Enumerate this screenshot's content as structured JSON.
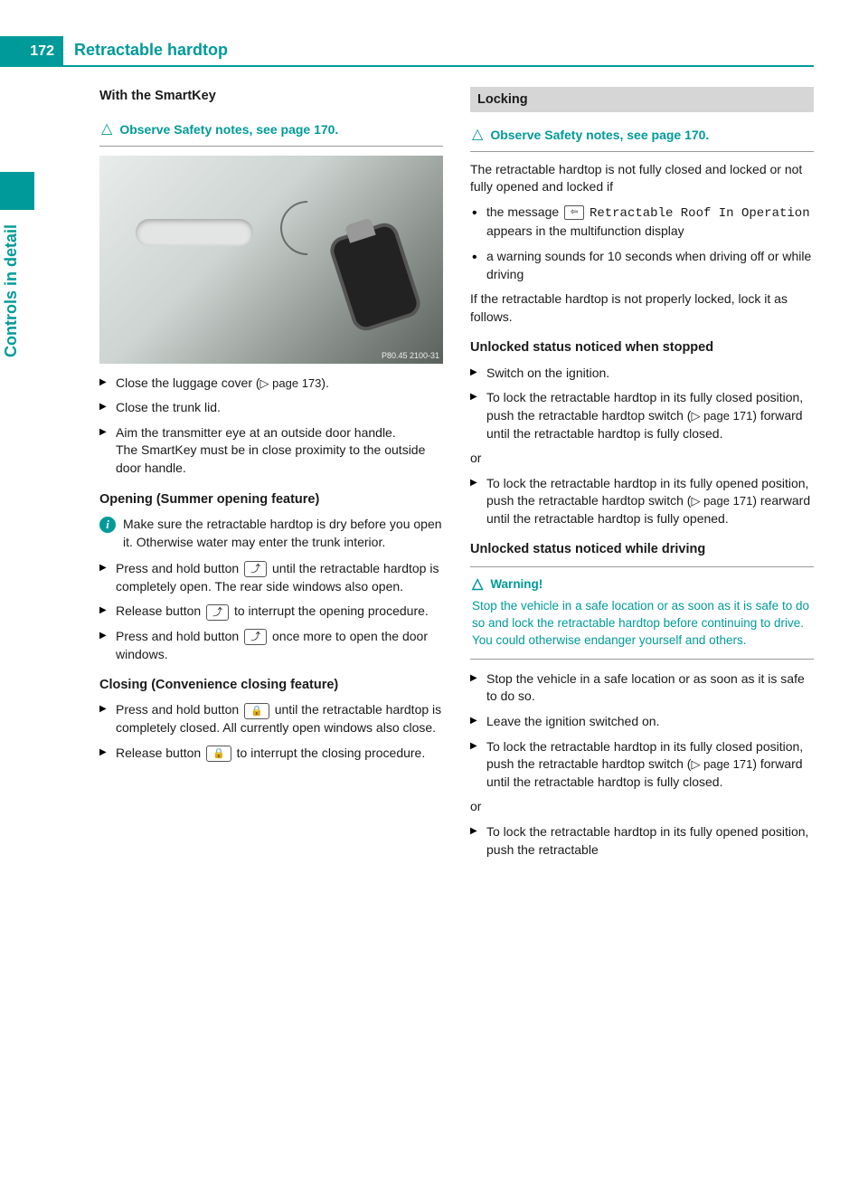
{
  "page": {
    "number": "172",
    "chapter_title": "Retractable hardtop",
    "side_tab": "Controls in detail"
  },
  "left": {
    "h_smartkey": "With the SmartKey",
    "safety1": "Observe Safety notes, see page 170.",
    "illus_stamp": "P80.45 2100-31",
    "steps1": {
      "a": "Close the luggage cover (",
      "a_ref": "▷ page 173",
      "a_end": ").",
      "b": "Close the trunk lid.",
      "c1": "Aim the transmitter eye at an outside door handle.",
      "c2": "The SmartKey must be in close proximity to the outside door handle."
    },
    "h_opening": "Opening (Summer opening feature)",
    "info_open": "Make sure the retractable hardtop is dry before you open it. Otherwise water may enter the trunk interior.",
    "open_steps": {
      "a1": "Press and hold button ",
      "a2": " until the retractable hardtop is completely open. The rear side windows also open.",
      "b1": "Release button ",
      "b2": " to interrupt the opening procedure.",
      "c1": "Press and hold button ",
      "c2": " once more to open the door windows."
    },
    "h_closing": "Closing (Convenience closing feature)",
    "close_steps": {
      "a1": "Press and hold button ",
      "a2": " until the retractable hardtop is completely closed. All currently open windows also close.",
      "b1": "Release button ",
      "b2": " to interrupt the closing procedure."
    },
    "btn_unlock": "⤴",
    "btn_lock": "🔒"
  },
  "right": {
    "h_locking": "Locking",
    "safety2": "Observe Safety notes, see page 170.",
    "intro": "The retractable hardtop is not fully closed and locked or not fully opened and locked if",
    "bullets": {
      "a1": "the message ",
      "a_mono": "Retractable Roof In Operation",
      "a2": " appears in the multifunction display",
      "b": "a warning sounds for 10 seconds when driving off or while driving"
    },
    "msg_icon": "⇦",
    "after_bullets": "If the retractable hardtop is not properly locked, lock it as follows.",
    "h_stopped": "Unlocked status noticed when stopped",
    "stopped": {
      "a": "Switch on the ignition.",
      "b1": "To lock the retractable hardtop in its fully closed position, push the retractable hardtop switch (",
      "b_ref": "▷ page 171",
      "b2": ") forward until the retractable hardtop is fully closed.",
      "or": "or",
      "c1": "To lock the retractable hardtop in its fully opened position, push the retractable hardtop switch (",
      "c_ref": "▷ page 171",
      "c2": ") rearward until the retractable hardtop is fully opened."
    },
    "h_driving": "Unlocked status noticed while driving",
    "warn_head": "Warning!",
    "warn_body": "Stop the vehicle in a safe location or as soon as it is safe to do so and lock the retractable hardtop before continuing to drive. You could otherwise endanger yourself and others.",
    "driving": {
      "a": "Stop the vehicle in a safe location or as soon as it is safe to do so.",
      "b": "Leave the ignition switched on.",
      "c1": "To lock the retractable hardtop in its fully closed position, push the retractable hardtop switch (",
      "c_ref": "▷ page 171",
      "c2": ") forward until the retractable hardtop is fully closed.",
      "or": "or",
      "d": "To lock the retractable hardtop in its fully opened position, push the retractable"
    }
  },
  "colors": {
    "teal": "#009a9a",
    "section_bg": "#d6d6d6",
    "text": "#1a1a1a"
  }
}
